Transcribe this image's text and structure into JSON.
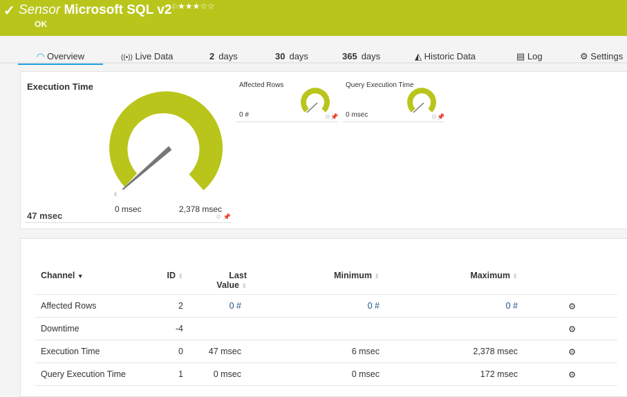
{
  "header": {
    "prefix": "Sensor",
    "name": "Microsoft SQL v2",
    "status": "OK",
    "priority_stars": 3,
    "priority_max": 5,
    "color": "#b9c51b"
  },
  "tabs": [
    {
      "label": "Overview",
      "icon": "gauge-icon",
      "active": true
    },
    {
      "label": "Live Data",
      "icon": "broadcast-icon"
    },
    {
      "num": "2",
      "label": "days"
    },
    {
      "num": "30",
      "label": "days"
    },
    {
      "num": "365",
      "label": "days"
    },
    {
      "label": "Historic Data",
      "icon": "area-chart-icon"
    },
    {
      "label": "Log",
      "icon": "log-icon"
    },
    {
      "label": "Settings",
      "icon": "gear-icon"
    }
  ],
  "gauges": {
    "main": {
      "title": "Execution Time",
      "value": "47 msec",
      "min_label": "0 msec",
      "max_label": "2,378 msec",
      "value_num": 47,
      "max": 2378
    },
    "small": [
      {
        "title": "Affected Rows",
        "value": "0 #"
      },
      {
        "title": "Query Execution Time",
        "value": "0 msec"
      }
    ]
  },
  "table": {
    "headers": {
      "channel": "Channel",
      "id": "ID",
      "last": "Last",
      "last2": "Value",
      "minimum": "Minimum",
      "maximum": "Maximum"
    },
    "rows": [
      {
        "channel": "Affected Rows",
        "id": "2",
        "last": "0 #",
        "min": "0 #",
        "max": "0 #"
      },
      {
        "channel": "Downtime",
        "id": "-4",
        "last": "",
        "min": "",
        "max": ""
      },
      {
        "channel": "Execution Time",
        "id": "0",
        "last": "47 msec",
        "min": "6 msec",
        "max": "2,378 msec"
      },
      {
        "channel": "Query Execution Time",
        "id": "1",
        "last": "0 msec",
        "min": "0 msec",
        "max": "172 msec"
      }
    ]
  }
}
